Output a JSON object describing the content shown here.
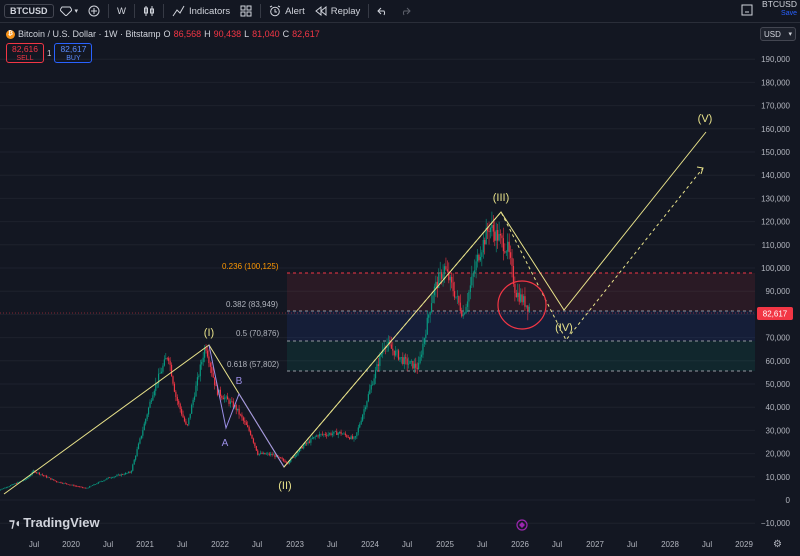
{
  "toolbar": {
    "symbol": "BTCUSD",
    "interval": "W",
    "indicators_label": "Indicators",
    "alert_label": "Alert",
    "replay_label": "Replay"
  },
  "header_right": {
    "symbol": "BTCUSD",
    "save_label": "Save"
  },
  "currency": "USD",
  "legend": {
    "title": "Bitcoin / U.S. Dollar · 1W · Bitstamp",
    "o_label": "O",
    "o": "86,568",
    "h_label": "H",
    "h": "90,438",
    "l_label": "L",
    "l": "81,040",
    "c_label": "C",
    "c": "82,617"
  },
  "trade": {
    "sell_price": "82,616",
    "sell_label": "SELL",
    "spread": "1",
    "buy_price": "82,617",
    "buy_label": "BUY"
  },
  "price_axis": [
    "190,000",
    "180,000",
    "170,000",
    "160,000",
    "150,000",
    "140,000",
    "130,000",
    "120,000",
    "110,000",
    "100,000",
    "90,000",
    "80,000",
    "70,000",
    "60,000",
    "50,000",
    "40,000",
    "30,000",
    "20,000",
    "10,000",
    "0",
    "−10,000"
  ],
  "last_price": "82,617",
  "time_axis": [
    "Jul",
    "2020",
    "Jul",
    "2021",
    "Jul",
    "2022",
    "Jul",
    "2023",
    "Jul",
    "2024",
    "Jul",
    "2025",
    "Jul",
    "2026",
    "Jul",
    "2027",
    "Jul",
    "2028",
    "Jul",
    "2029"
  ],
  "fib_levels": [
    {
      "label": "0.236 (100,125)",
      "color": "#ff9800"
    },
    {
      "label": "0.382 (83,949)",
      "color": "#b2b5be"
    },
    {
      "label": "0.5 (70,876)",
      "color": "#b2b5be"
    },
    {
      "label": "0.618 (57,802)",
      "color": "#b2b5be"
    }
  ],
  "wave_labels": {
    "w1": "(I)",
    "w2": "(II)",
    "w3": "(III)",
    "w4": "(IV)",
    "w5": "(V)",
    "a1": "A",
    "b1": "B"
  },
  "brand": "TradingView",
  "colors": {
    "up": "#089981",
    "down": "#f23645",
    "projection": "#e8e28a",
    "bg": "#131722"
  }
}
